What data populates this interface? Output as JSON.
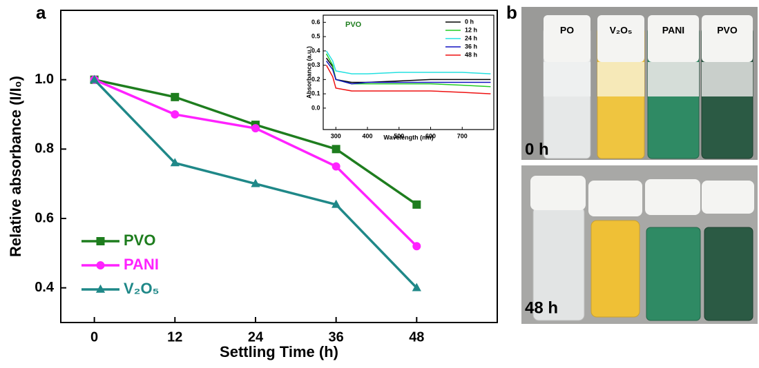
{
  "chart_data": [
    {
      "type": "line",
      "xlabel": "Settling Time (h)",
      "ylabel": "Relative absorbance (I/I₀)",
      "x": [
        0,
        12,
        24,
        36,
        48
      ],
      "xlim": [
        -5,
        60
      ],
      "xticks": [
        0,
        12,
        24,
        36,
        48
      ],
      "ylim": [
        0.3,
        1.2
      ],
      "yticks": [
        0.4,
        0.6,
        0.8,
        {
          "value": 1,
          "label": "1.0"
        }
      ],
      "grid": false,
      "legend": "lower left",
      "series": [
        {
          "name": "PVO",
          "color": "#1e7d1e",
          "marker": "square",
          "values": [
            1.0,
            0.95,
            0.87,
            0.8,
            0.64
          ]
        },
        {
          "name": "PANI",
          "color": "#ff22ff",
          "marker": "circle",
          "values": [
            1.0,
            0.9,
            0.86,
            0.75,
            0.52
          ]
        },
        {
          "name": "V₂O₅",
          "color": "#1f8888",
          "marker": "triangle",
          "values": [
            1.0,
            0.76,
            0.7,
            0.64,
            0.4
          ]
        }
      ]
    },
    {
      "type": "line",
      "title": "PVO",
      "xlabel": "Wavelength (nm)",
      "ylabel": "Absorbance (a.u.)",
      "x": [
        270,
        290,
        300,
        350,
        400,
        500,
        600,
        700,
        790
      ],
      "xlim": [
        260,
        800
      ],
      "xticks": [
        300,
        400,
        500,
        600,
        700
      ],
      "ylim": [
        -0.15,
        0.65
      ],
      "yticks": [
        {
          "value": 0,
          "label": "0.0"
        },
        0.1,
        0.2,
        0.3,
        0.4,
        0.5,
        0.6
      ],
      "grid": false,
      "legend": "upper right",
      "series": [
        {
          "name": "0 h",
          "color": "#000000",
          "values": [
            0.35,
            0.29,
            0.2,
            0.18,
            0.18,
            0.19,
            0.2,
            0.2,
            0.2
          ]
        },
        {
          "name": "12 h",
          "color": "#22cc22",
          "values": [
            0.38,
            0.3,
            0.2,
            0.17,
            0.17,
            0.17,
            0.17,
            0.16,
            0.15
          ]
        },
        {
          "name": "24 h",
          "color": "#22e0e0",
          "values": [
            0.4,
            0.33,
            0.26,
            0.24,
            0.24,
            0.25,
            0.25,
            0.25,
            0.24
          ]
        },
        {
          "name": "36 h",
          "color": "#1010c0",
          "values": [
            0.33,
            0.27,
            0.2,
            0.17,
            0.18,
            0.18,
            0.18,
            0.18,
            0.18
          ]
        },
        {
          "name": "48 h",
          "color": "#ee1111",
          "values": [
            0.3,
            0.22,
            0.14,
            0.12,
            0.12,
            0.12,
            0.12,
            0.11,
            0.1
          ]
        }
      ]
    }
  ],
  "panels": [
    "a",
    "b"
  ],
  "photo": {
    "vials": [
      "PO",
      "V₂O₅",
      "PANI",
      "PVO"
    ],
    "times": [
      "0 h",
      "48 h"
    ]
  }
}
